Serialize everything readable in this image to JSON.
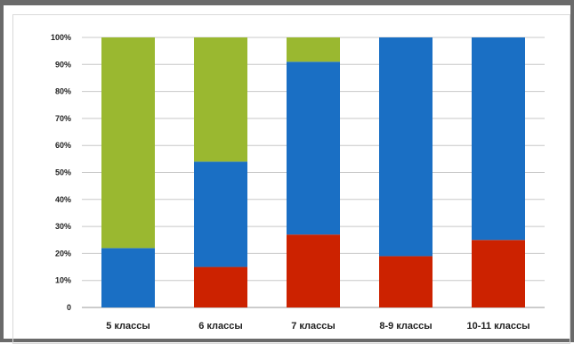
{
  "chart_data": {
    "type": "bar",
    "stacked": true,
    "categories": [
      "5 классы",
      "6 классы",
      "7 классы",
      "8-9 классы",
      "10-11 классы"
    ],
    "series": [
      {
        "color": "#cc2200",
        "values": [
          0,
          15,
          27,
          19,
          25
        ]
      },
      {
        "color": "#1a6fc4",
        "values": [
          22,
          39,
          64,
          81,
          75
        ]
      },
      {
        "color": "#9ab830",
        "values": [
          78,
          46,
          9,
          0,
          0
        ]
      }
    ],
    "y_ticks": [
      "0",
      "10%",
      "20%",
      "30%",
      "40%",
      "50%",
      "60%",
      "70%",
      "80%",
      "90%",
      "100%"
    ],
    "ylim": [
      0,
      100
    ],
    "grid": true,
    "title": "",
    "xlabel": "",
    "ylabel": ""
  }
}
